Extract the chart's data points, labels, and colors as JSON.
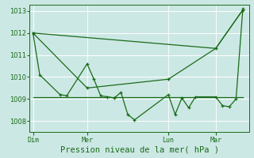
{
  "bg_color": "#cce8e4",
  "grid_color": "#ffffff",
  "line_color": "#1a6b1a",
  "title": "Pression niveau de la mer( hPa )",
  "ylabel_ticks": [
    1008,
    1009,
    1010,
    1011,
    1012,
    1013
  ],
  "xtick_labels": [
    "Dim",
    "Mer",
    "Lun",
    "Mar"
  ],
  "xtick_positions": [
    0,
    8,
    20,
    27
  ],
  "xlim": [
    -0.5,
    32
  ],
  "ylim": [
    1007.5,
    1013.3
  ],
  "series1_x": [
    0,
    1,
    4,
    5,
    8,
    9,
    10,
    11,
    12,
    13,
    14,
    15,
    20,
    21,
    22,
    23,
    24,
    27,
    28,
    29,
    30,
    31
  ],
  "series1_y": [
    1012.0,
    1010.1,
    1009.2,
    1009.15,
    1010.6,
    1009.9,
    1009.15,
    1009.1,
    1009.05,
    1009.3,
    1008.3,
    1008.05,
    1009.2,
    1008.3,
    1009.05,
    1008.6,
    1009.1,
    1009.1,
    1008.7,
    1008.65,
    1009.0,
    1013.1
  ],
  "series2_x": [
    0,
    31
  ],
  "series2_y": [
    1009.1,
    1009.1
  ],
  "series3_x": [
    0,
    8,
    20,
    27,
    31
  ],
  "series3_y": [
    1012.0,
    1009.5,
    1009.9,
    1011.3,
    1013.05
  ],
  "series4_x": [
    0,
    27,
    31
  ],
  "series4_y": [
    1012.0,
    1011.3,
    1013.05
  ],
  "vlines": [
    8,
    20,
    27
  ],
  "linewidth": 0.9,
  "marker_size": 3.5,
  "tick_fontsize": 6,
  "label_fontsize": 7.5
}
